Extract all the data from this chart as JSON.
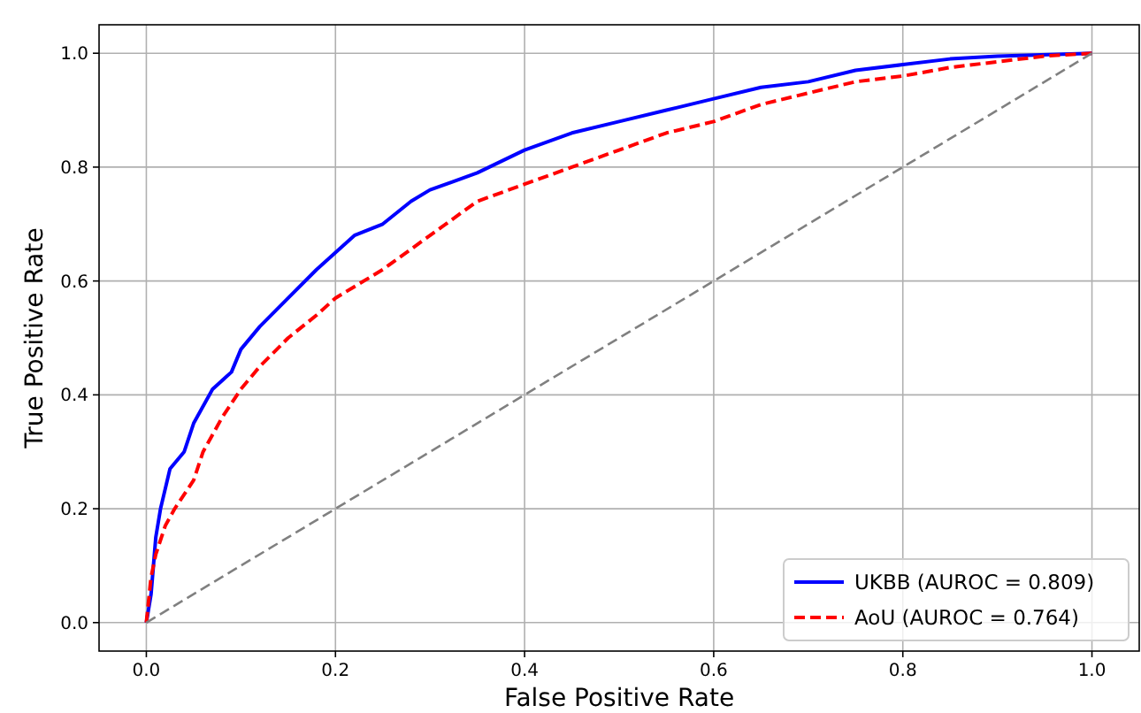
{
  "chart_data": {
    "type": "line",
    "xlabel": "False Positive Rate",
    "ylabel": "True Positive Rate",
    "xlim": [
      -0.05,
      1.05
    ],
    "ylim": [
      -0.05,
      1.05
    ],
    "xticks": [
      {
        "value": 0,
        "label": "0.0"
      },
      {
        "value": 0.2,
        "label": "0.2"
      },
      {
        "value": 0.4,
        "label": "0.4"
      },
      {
        "value": 0.6,
        "label": "0.6"
      },
      {
        "value": 0.8,
        "label": "0.8"
      },
      {
        "value": 1,
        "label": "1.0"
      }
    ],
    "yticks": [
      {
        "value": 0,
        "label": "0.0"
      },
      {
        "value": 0.2,
        "label": "0.2"
      },
      {
        "value": 0.4,
        "label": "0.4"
      },
      {
        "value": 0.6,
        "label": "0.6"
      },
      {
        "value": 0.8,
        "label": "0.8"
      },
      {
        "value": 1,
        "label": "1.0"
      }
    ],
    "grid": true,
    "legend": "bottom right",
    "marker": "none",
    "series": [
      {
        "name": "UKBB (AUROC = 0.809)",
        "color": "#0000ff",
        "line_style": "solid",
        "x": [
          0,
          0.005,
          0.01,
          0.015,
          0.025,
          0.04,
          0.05,
          0.07,
          0.09,
          0.1,
          0.12,
          0.15,
          0.18,
          0.2,
          0.22,
          0.25,
          0.28,
          0.3,
          0.35,
          0.4,
          0.45,
          0.5,
          0.55,
          0.6,
          0.65,
          0.7,
          0.75,
          0.8,
          0.85,
          0.9,
          1
        ],
        "values": [
          0,
          0.05,
          0.15,
          0.2,
          0.27,
          0.3,
          0.35,
          0.41,
          0.44,
          0.48,
          0.52,
          0.57,
          0.62,
          0.65,
          0.68,
          0.7,
          0.74,
          0.76,
          0.79,
          0.83,
          0.86,
          0.88,
          0.9,
          0.92,
          0.94,
          0.95,
          0.97,
          0.98,
          0.99,
          0.995,
          1
        ]
      },
      {
        "name": "AoU (AUROC = 0.764)",
        "color": "#ff0000",
        "line_style": "dashed",
        "x": [
          0,
          0.005,
          0.01,
          0.02,
          0.03,
          0.05,
          0.06,
          0.08,
          0.1,
          0.12,
          0.15,
          0.18,
          0.2,
          0.25,
          0.3,
          0.35,
          0.4,
          0.45,
          0.5,
          0.55,
          0.6,
          0.65,
          0.7,
          0.75,
          0.8,
          0.85,
          0.9,
          0.95,
          1
        ],
        "values": [
          0,
          0.08,
          0.12,
          0.17,
          0.2,
          0.25,
          0.3,
          0.36,
          0.41,
          0.45,
          0.5,
          0.54,
          0.57,
          0.62,
          0.68,
          0.74,
          0.77,
          0.8,
          0.83,
          0.86,
          0.88,
          0.91,
          0.93,
          0.95,
          0.96,
          0.975,
          0.985,
          0.995,
          1
        ]
      },
      {
        "color": "#808080",
        "line_style": "dashed",
        "x": [
          0,
          1
        ],
        "values": [
          0,
          1
        ]
      }
    ]
  }
}
